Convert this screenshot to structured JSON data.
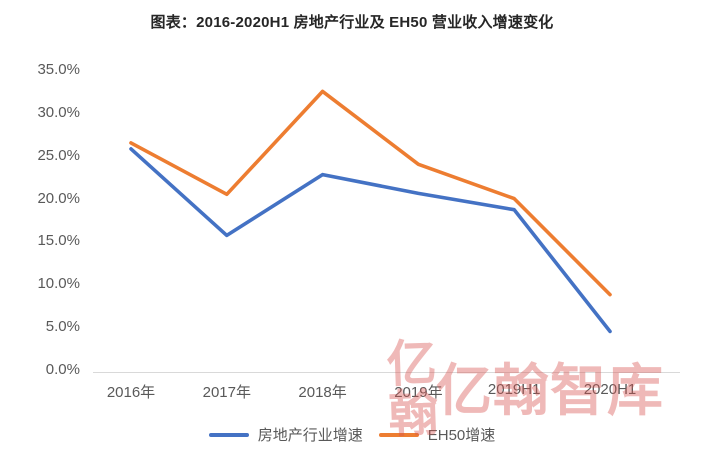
{
  "title": "图表：2016-2020H1 房地产行业及 EH50 营业收入增速变化",
  "watermark": {
    "seal_text": "亿翰",
    "brand_text": "亿翰智库",
    "color": "#d9534f"
  },
  "legend": {
    "items": [
      "房地产行业增速",
      "EH50增速"
    ]
  },
  "chart_data": {
    "type": "line",
    "title": "图表：2016-2020H1 房地产行业及 EH50 营业收入增速变化",
    "categories": [
      "2016年",
      "2017年",
      "2018年",
      "2019年",
      "2019H1",
      "2020H1"
    ],
    "series": [
      {
        "name": "房地产行业增速",
        "color": "#4472c4",
        "values": [
          25.8,
          15.7,
          22.8,
          20.6,
          18.7,
          4.5
        ]
      },
      {
        "name": "EH50增速",
        "color": "#ed7d31",
        "values": [
          26.5,
          20.5,
          32.5,
          24.0,
          20.0,
          8.8
        ]
      }
    ],
    "xlabel": "",
    "ylabel": "",
    "ylim": [
      0,
      35
    ],
    "y_ticks": [
      "0.0%",
      "5.0%",
      "10.0%",
      "15.0%",
      "20.0%",
      "25.0%",
      "30.0%",
      "35.0%"
    ],
    "y_tick_step_percent": 5,
    "grid": false,
    "legend_position": "bottom",
    "unit": "percent"
  }
}
